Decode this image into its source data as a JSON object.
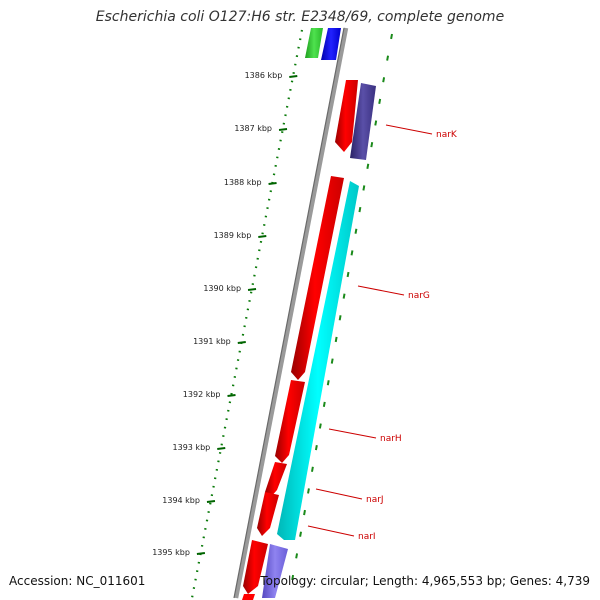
{
  "title": "Escherichia coli O127:H6 str. E2348/69, complete genome",
  "footer": {
    "accession": "Accession: NC_011601",
    "topology": "Topology: circular; Length: 4,965,553 bp; Genes: 4,739"
  },
  "ticks": [
    {
      "label": "1386 kbp"
    },
    {
      "label": "1387 kbp"
    },
    {
      "label": "1388 kbp"
    },
    {
      "label": "1389 kbp"
    },
    {
      "label": "1390 kbp"
    },
    {
      "label": "1391 kbp"
    },
    {
      "label": "1392 kbp"
    },
    {
      "label": "1393 kbp"
    },
    {
      "label": "1394 kbp"
    },
    {
      "label": "1395 kbp"
    }
  ],
  "genes": [
    {
      "name": "narK",
      "strand": "forward"
    },
    {
      "name": "narG",
      "strand": "forward"
    },
    {
      "name": "narH",
      "strand": "forward"
    },
    {
      "name": "narJ",
      "strand": "forward"
    },
    {
      "name": "narI",
      "strand": "forward"
    }
  ],
  "colors": {
    "cds_forward": "#ff0000",
    "cds_reverse_teal": "#00ffff",
    "cds_purple": "#483d8b",
    "cds_light_purple": "#7b68ee",
    "cds_blue": "#0000ff",
    "cds_green": "#32cd32",
    "backbone": "#808080",
    "tick": "#006400",
    "gene_label": "#cc0000"
  }
}
